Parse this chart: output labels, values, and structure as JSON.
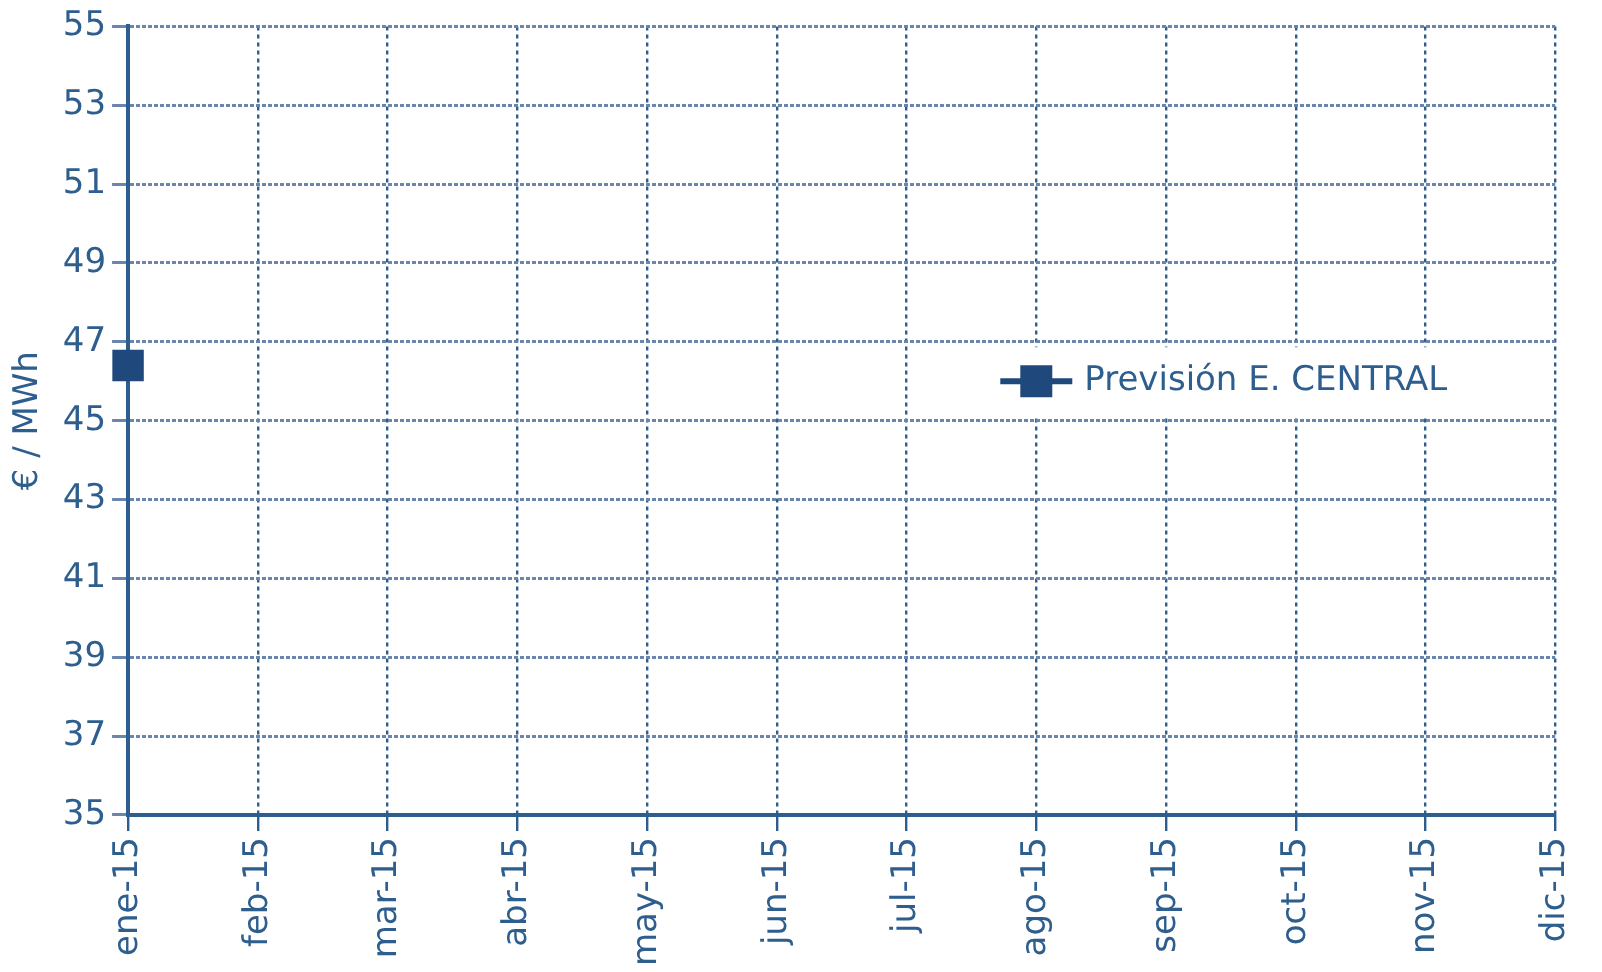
{
  "chart_data": {
    "type": "line",
    "ylabel": "€ / MWh",
    "categories": [
      "ene-15",
      "feb-15",
      "mar-15",
      "abr-15",
      "may-15",
      "jun-15",
      "jul-15",
      "ago-15",
      "sep-15",
      "oct-15",
      "nov-15",
      "dic-15"
    ],
    "series": [
      {
        "name": "Previsión E. CENTRAL",
        "color": "#1f497d",
        "values": [
          46.4,
          null,
          null,
          null,
          null,
          null,
          null,
          null,
          null,
          null,
          null,
          null
        ]
      }
    ],
    "ylim": [
      35,
      55
    ],
    "yticks": [
      35,
      37,
      39,
      41,
      43,
      45,
      47,
      49,
      51,
      53,
      55
    ],
    "grid": true,
    "legend": "right",
    "marker": "square"
  }
}
